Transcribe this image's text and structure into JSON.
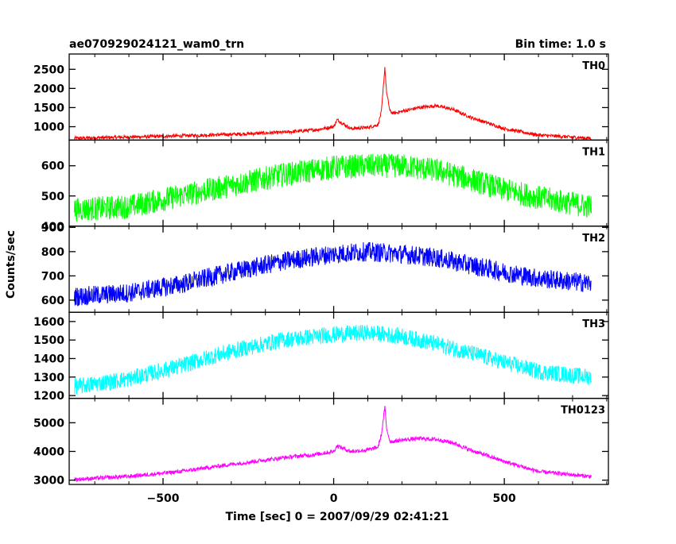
{
  "header": {
    "title": "ae070929024121_wam0_trn",
    "bin_time": "Bin time: 1.0 s"
  },
  "chart_data": {
    "type": "line",
    "xlabel": "Time [sec] 0 = 2007/09/29 02:41:21",
    "ylabel": "Counts/sec",
    "xlim": [
      -775,
      805
    ],
    "xticks": [
      -500,
      0,
      500
    ],
    "xtick_labels": [
      "−500",
      "0",
      "500"
    ],
    "grid": false,
    "panels": [
      {
        "name": "TH0",
        "color": "#ff0000",
        "ylim": [
          650,
          2900
        ],
        "yticks": [
          1000,
          1500,
          2000,
          2500
        ],
        "series_x": [
          -750,
          -600,
          -450,
          -300,
          -150,
          -50,
          0,
          10,
          50,
          100,
          130,
          140,
          150,
          155,
          165,
          175,
          200,
          250,
          300,
          350,
          400,
          500,
          600,
          750
        ],
        "series_y": [
          700,
          730,
          760,
          800,
          850,
          920,
          1000,
          1180,
          950,
          980,
          1050,
          1400,
          2550,
          1900,
          1400,
          1350,
          1400,
          1500,
          1550,
          1450,
          1250,
          950,
          780,
          700
        ],
        "noise": 45
      },
      {
        "name": "TH1",
        "color": "#00ff00",
        "ylim": [
          400,
          685
        ],
        "yticks": [
          400,
          500,
          600
        ],
        "series_x": [
          -750,
          -600,
          -450,
          -300,
          -150,
          0,
          100,
          200,
          300,
          400,
          500,
          600,
          750
        ],
        "series_y": [
          455,
          465,
          500,
          535,
          570,
          595,
          600,
          600,
          585,
          555,
          520,
          495,
          465
        ],
        "noise": 40
      },
      {
        "name": "TH2",
        "color": "#0000ff",
        "ylim": [
          550,
          905
        ],
        "yticks": [
          600,
          700,
          800,
          900
        ],
        "series_x": [
          -750,
          -600,
          -450,
          -300,
          -150,
          0,
          100,
          200,
          300,
          400,
          500,
          600,
          750
        ],
        "series_y": [
          615,
          630,
          665,
          715,
          760,
          790,
          800,
          790,
          775,
          745,
          715,
          690,
          670
        ],
        "noise": 40
      },
      {
        "name": "TH3",
        "color": "#00ffff",
        "ylim": [
          1185,
          1650
        ],
        "yticks": [
          1200,
          1300,
          1400,
          1500,
          1600
        ],
        "series_x": [
          -750,
          -600,
          -450,
          -300,
          -150,
          0,
          100,
          200,
          300,
          400,
          500,
          600,
          750
        ],
        "series_y": [
          1250,
          1290,
          1360,
          1440,
          1500,
          1530,
          1540,
          1520,
          1480,
          1430,
          1380,
          1330,
          1300
        ],
        "noise": 45
      },
      {
        "name": "TH0123",
        "color": "#ff00ff",
        "ylim": [
          2850,
          5850
        ],
        "yticks": [
          3000,
          4000,
          5000
        ],
        "series_x": [
          -750,
          -600,
          -450,
          -300,
          -150,
          -50,
          0,
          10,
          50,
          100,
          130,
          140,
          150,
          155,
          165,
          175,
          200,
          250,
          300,
          350,
          400,
          500,
          600,
          750
        ],
        "series_y": [
          3030,
          3130,
          3300,
          3550,
          3780,
          3900,
          4000,
          4200,
          4000,
          4050,
          4150,
          4600,
          5550,
          4800,
          4350,
          4350,
          4400,
          4450,
          4420,
          4300,
          4050,
          3650,
          3300,
          3130
        ],
        "noise": 70
      }
    ]
  }
}
